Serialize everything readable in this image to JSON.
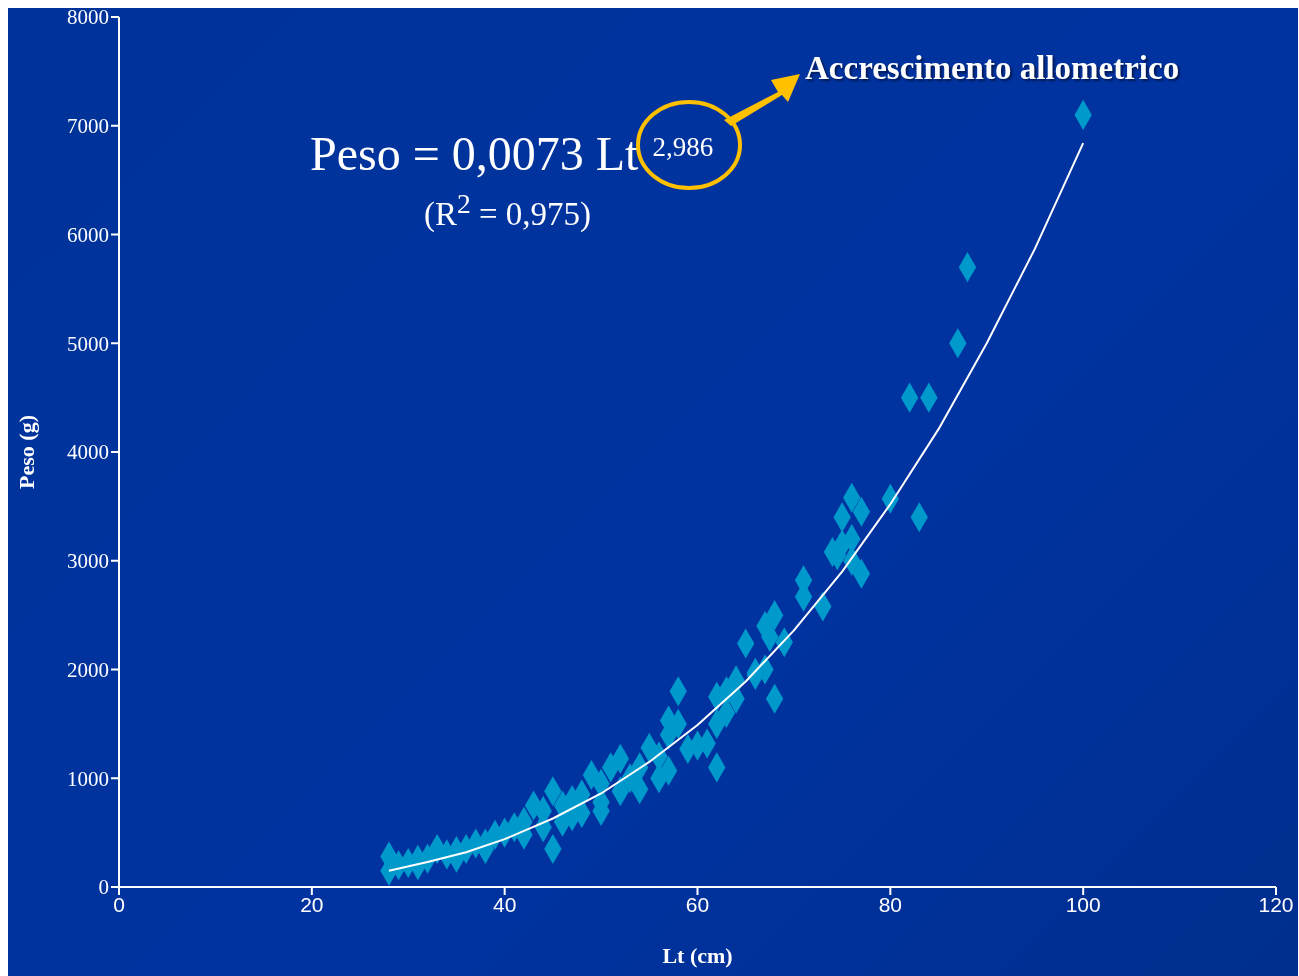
{
  "chart_data": {
    "type": "scatter",
    "xlabel": "Lt (cm)",
    "ylabel": "Peso (g)",
    "xlim": [
      0,
      120
    ],
    "xticks": [
      0,
      20,
      40,
      60,
      80,
      100,
      120
    ],
    "ylim": [
      0,
      8000
    ],
    "yticks": [
      0,
      1000,
      2000,
      3000,
      4000,
      5000,
      6000,
      7000,
      8000
    ],
    "grid": false,
    "marker": "diamond",
    "annotations": [
      "Peso = 0,0073 Lt$^{2,986}$",
      "(R$^{2}$ = 0,975)",
      "Accrescimento allometrico"
    ],
    "series": [
      {
        "type": "scatter",
        "color": "#0099cc",
        "x": [
          100,
          88,
          87,
          82,
          84,
          80,
          83,
          76,
          75,
          77,
          76,
          75,
          74,
          74.5,
          76,
          77,
          73,
          71,
          71,
          68,
          67,
          67.5,
          69,
          68,
          66,
          67,
          65,
          64,
          63,
          62,
          64,
          62,
          61,
          62,
          58,
          57,
          58,
          57,
          59,
          56,
          57,
          55,
          54,
          52,
          51,
          53,
          50,
          49,
          48,
          47,
          46,
          45,
          44,
          43,
          45,
          42,
          41,
          40,
          39,
          38,
          37,
          36,
          35,
          34,
          33,
          32,
          31,
          30,
          29,
          28,
          28,
          44,
          46,
          48,
          50,
          52,
          54,
          56,
          60,
          63,
          66,
          50,
          47,
          42,
          38,
          35,
          31
        ],
        "values": [
          7100,
          5700,
          5000,
          4500,
          4500,
          3570,
          3400,
          3580,
          3400,
          3450,
          3200,
          3150,
          3080,
          3050,
          3000,
          2880,
          2580,
          2820,
          2670,
          2500,
          2400,
          2300,
          2250,
          1730,
          1970,
          2000,
          2240,
          1900,
          1800,
          1750,
          1730,
          1500,
          1320,
          1100,
          1800,
          1530,
          1500,
          1400,
          1270,
          1200,
          1070,
          1280,
          1100,
          1180,
          1100,
          1000,
          950,
          1030,
          850,
          800,
          750,
          880,
          700,
          750,
          350,
          600,
          550,
          500,
          480,
          400,
          400,
          350,
          330,
          300,
          350,
          260,
          250,
          220,
          200,
          280,
          150,
          550,
          600,
          680,
          780,
          880,
          900,
          1000,
          1300,
          1600,
          1950,
          700,
          650,
          480,
          350,
          270,
          200
        ]
      },
      {
        "type": "line",
        "color": "#ffffff",
        "marker": "none",
        "x": [
          28,
          32,
          36,
          40,
          45,
          50,
          55,
          60,
          65,
          70,
          75,
          80,
          85,
          90,
          95,
          100
        ],
        "values": [
          150,
          230,
          320,
          440,
          630,
          860,
          1150,
          1490,
          1890,
          2360,
          2900,
          3520,
          4210,
          5000,
          5870,
          6840
        ]
      }
    ]
  }
}
